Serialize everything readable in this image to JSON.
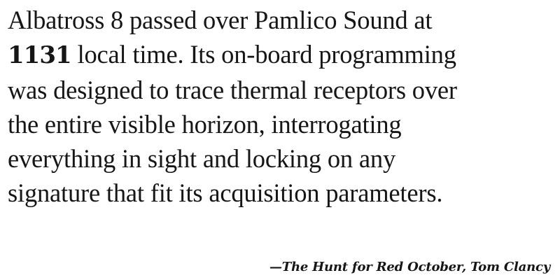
{
  "quote": {
    "line1": "Albatross 8 passed over Pamlico Sound at",
    "time": "1131",
    "line2_rest": " local time. Its on-board programming",
    "line3": "was designed to trace thermal receptors over",
    "line4": "the entire visible horizon, interrogating",
    "line5": "everything in sight and locking on any",
    "line6": "signature that fit its acquisition parameters."
  },
  "attribution": {
    "dash": "—",
    "title": "The Hunt for Red October",
    "separator": ", ",
    "author": "Tom Clancy"
  }
}
